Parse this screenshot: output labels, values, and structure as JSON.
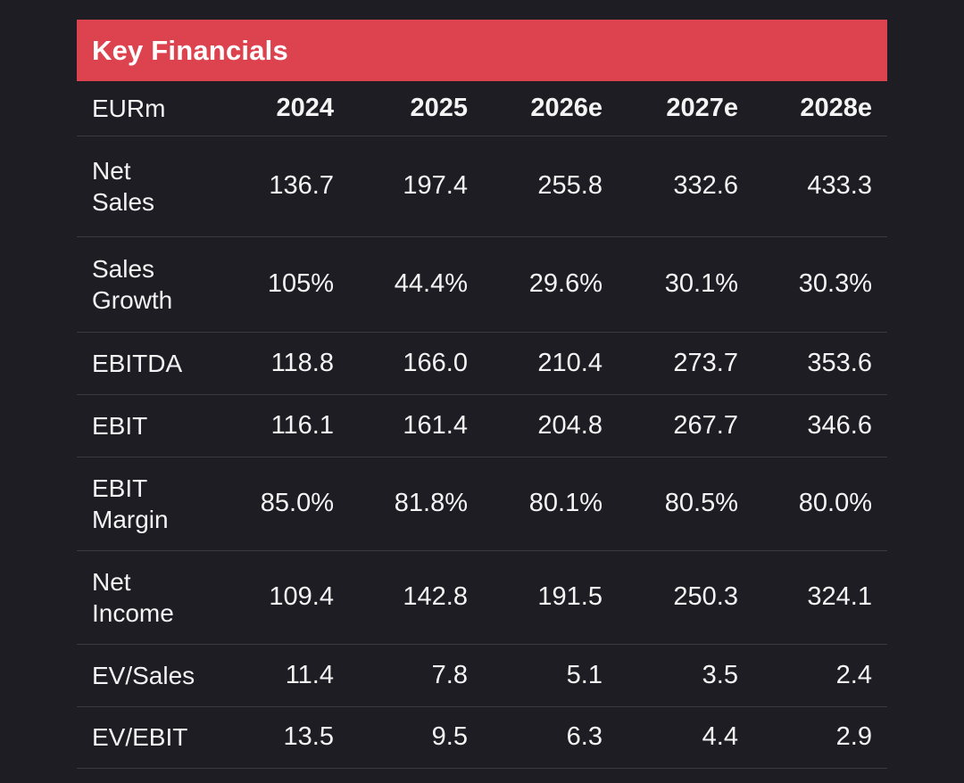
{
  "header": {
    "title": "Key Financials"
  },
  "chart_data": {
    "type": "table",
    "title": "Key Financials",
    "unit": "EURm",
    "columns": [
      "2024",
      "2025",
      "2026e",
      "2027e",
      "2028e"
    ],
    "rows": [
      {
        "label": "Net Sales",
        "values": [
          "136.7",
          "197.4",
          "255.8",
          "332.6",
          "433.3"
        ]
      },
      {
        "label": "Sales Growth",
        "values": [
          "105%",
          "44.4%",
          "29.6%",
          "30.1%",
          "30.3%"
        ]
      },
      {
        "label": "EBITDA",
        "values": [
          "118.8",
          "166.0",
          "210.4",
          "273.7",
          "353.6"
        ]
      },
      {
        "label": "EBIT",
        "values": [
          "116.1",
          "161.4",
          "204.8",
          "267.7",
          "346.6"
        ]
      },
      {
        "label": "EBIT Margin",
        "values": [
          "85.0%",
          "81.8%",
          "80.1%",
          "80.5%",
          "80.0%"
        ]
      },
      {
        "label": "Net Income",
        "values": [
          "109.4",
          "142.8",
          "191.5",
          "250.3",
          "324.1"
        ]
      },
      {
        "label": "EV/Sales",
        "values": [
          "11.4",
          "7.8",
          "5.1",
          "3.5",
          "2.4"
        ]
      },
      {
        "label": "EV/EBIT",
        "values": [
          "13.5",
          "9.5",
          "6.3",
          "4.4",
          "2.9"
        ]
      }
    ]
  },
  "colors": {
    "background": "#1d1d23",
    "banner": "#dc434e",
    "text": "#f4f4f5",
    "divider": "#3a3a42"
  }
}
